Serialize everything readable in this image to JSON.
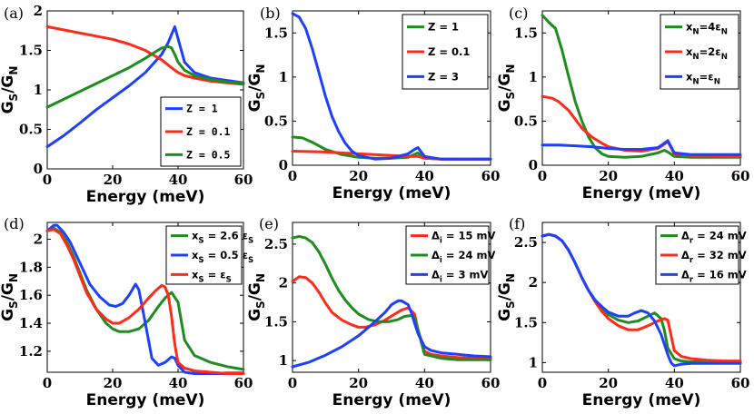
{
  "chart_data": [
    {
      "type": "line",
      "panel_label": "(a)",
      "xlabel": "Energy (meV)",
      "ylabel": "G_S/G_N",
      "xlim": [
        0,
        60
      ],
      "ylim": [
        0,
        2
      ],
      "xticks": [
        "0",
        "20",
        "40",
        "60"
      ],
      "yticks": [
        "0",
        "0.5",
        "1",
        "1.5",
        "2"
      ],
      "legend_location": "bottom-right",
      "legend_style": "mono",
      "series": [
        {
          "name": "Z = 1",
          "color": "#1f3fff",
          "x": [
            0,
            5,
            10,
            15,
            20,
            25,
            30,
            35,
            37,
            38,
            39,
            40,
            42,
            45,
            50,
            55,
            60
          ],
          "y": [
            0.28,
            0.42,
            0.58,
            0.75,
            0.9,
            1.05,
            1.22,
            1.45,
            1.6,
            1.7,
            1.8,
            1.65,
            1.35,
            1.22,
            1.15,
            1.12,
            1.09
          ]
        },
        {
          "name": "Z = 0.1",
          "color": "#ff2a1a",
          "x": [
            0,
            5,
            10,
            15,
            20,
            25,
            30,
            35,
            38,
            40,
            42,
            45,
            50,
            55,
            60
          ],
          "y": [
            1.8,
            1.76,
            1.72,
            1.68,
            1.64,
            1.58,
            1.5,
            1.38,
            1.28,
            1.22,
            1.18,
            1.15,
            1.11,
            1.09,
            1.07
          ]
        },
        {
          "name": "Z = 0.5",
          "color": "#1e8c1e",
          "x": [
            0,
            5,
            10,
            15,
            20,
            25,
            30,
            33,
            35,
            37,
            38,
            39,
            40,
            42,
            45,
            50,
            55,
            60
          ],
          "y": [
            0.78,
            0.88,
            0.98,
            1.08,
            1.18,
            1.28,
            1.4,
            1.48,
            1.53,
            1.55,
            1.53,
            1.45,
            1.35,
            1.25,
            1.18,
            1.13,
            1.1,
            1.08
          ]
        }
      ]
    },
    {
      "type": "line",
      "panel_label": "(b)",
      "xlabel": "Energy (meV)",
      "ylabel": "G_S/G_N",
      "xlim": [
        0,
        60
      ],
      "ylim": [
        0,
        1.75
      ],
      "xticks": [
        "0",
        "20",
        "40",
        "60"
      ],
      "yticks": [
        "0",
        "0.5",
        "1",
        "1.5"
      ],
      "legend_location": "top-right",
      "legend_style": "sans",
      "series": [
        {
          "name": "Z = 1",
          "color": "#1e8c1e",
          "x": [
            0,
            3,
            6,
            10,
            15,
            20,
            25,
            30,
            35,
            38,
            40,
            45,
            50,
            55,
            60
          ],
          "y": [
            0.32,
            0.31,
            0.26,
            0.18,
            0.12,
            0.09,
            0.08,
            0.08,
            0.09,
            0.14,
            0.08,
            0.07,
            0.07,
            0.07,
            0.07
          ]
        },
        {
          "name": "Z = 0.1",
          "color": "#ff2a1a",
          "x": [
            0,
            10,
            20,
            30,
            35,
            38,
            40,
            45,
            50,
            60
          ],
          "y": [
            0.16,
            0.15,
            0.13,
            0.11,
            0.1,
            0.1,
            0.08,
            0.07,
            0.07,
            0.07
          ]
        },
        {
          "name": "Z = 3",
          "color": "#1f3fff",
          "x": [
            0,
            2,
            4,
            6,
            8,
            10,
            12,
            14,
            16,
            18,
            20,
            25,
            30,
            35,
            37,
            38,
            39,
            40,
            45,
            50,
            55,
            60
          ],
          "y": [
            1.72,
            1.68,
            1.55,
            1.32,
            1.05,
            0.78,
            0.55,
            0.38,
            0.25,
            0.16,
            0.11,
            0.07,
            0.08,
            0.13,
            0.18,
            0.2,
            0.15,
            0.1,
            0.07,
            0.07,
            0.07,
            0.07
          ]
        }
      ]
    },
    {
      "type": "line",
      "panel_label": "(c)",
      "xlabel": "Energy (meV)",
      "ylabel": "G_S/G_N",
      "xlim": [
        0,
        60
      ],
      "ylim": [
        0,
        1.75
      ],
      "xticks": [
        "0",
        "20",
        "40",
        "60"
      ],
      "yticks": [
        "0",
        "0.5",
        "1",
        "1.5"
      ],
      "legend_location": "top-right",
      "legend_style": "sans",
      "series": [
        {
          "name": "x_N=4ε_N",
          "color": "#1e8c1e",
          "x": [
            0,
            2,
            4,
            6,
            8,
            10,
            12,
            14,
            16,
            18,
            20,
            25,
            30,
            35,
            37,
            38,
            40,
            45,
            50,
            55,
            60
          ],
          "y": [
            1.7,
            1.62,
            1.55,
            1.3,
            1.0,
            0.72,
            0.5,
            0.32,
            0.2,
            0.13,
            0.1,
            0.09,
            0.1,
            0.14,
            0.17,
            0.15,
            0.1,
            0.09,
            0.09,
            0.09,
            0.09
          ]
        },
        {
          "name": "x_N=2ε_N",
          "color": "#ff2a1a",
          "x": [
            0,
            3,
            5,
            8,
            10,
            12,
            15,
            18,
            20,
            25,
            30,
            35,
            37,
            38,
            40,
            45,
            50,
            55,
            60
          ],
          "y": [
            0.78,
            0.76,
            0.72,
            0.62,
            0.52,
            0.42,
            0.32,
            0.25,
            0.21,
            0.17,
            0.16,
            0.19,
            0.24,
            0.27,
            0.13,
            0.11,
            0.11,
            0.1,
            0.1
          ]
        },
        {
          "name": "x_N=ε_N",
          "color": "#1f3fff",
          "x": [
            0,
            5,
            10,
            15,
            20,
            25,
            30,
            35,
            37,
            38,
            40,
            45,
            50,
            55,
            60
          ],
          "y": [
            0.23,
            0.23,
            0.22,
            0.21,
            0.19,
            0.18,
            0.18,
            0.2,
            0.25,
            0.28,
            0.14,
            0.12,
            0.12,
            0.12,
            0.12
          ]
        }
      ]
    },
    {
      "type": "line",
      "panel_label": "(d)",
      "xlabel": "Energy (meV)",
      "ylabel": "G_S/G_N",
      "xlim": [
        0,
        60
      ],
      "ylim": [
        1.05,
        2.12
      ],
      "xticks": [
        "0",
        "20",
        "40",
        "60"
      ],
      "yticks": [
        "1.2",
        "1.4",
        "1.6",
        "1.8",
        "2"
      ],
      "legend_location": "top-right",
      "legend_style": "sans",
      "series": [
        {
          "name": "x_S = 2.6 ε_S",
          "color": "#1e8c1e",
          "x": [
            0,
            2,
            4,
            6,
            8,
            10,
            12,
            15,
            18,
            20,
            22,
            25,
            28,
            31,
            34,
            36,
            38,
            40,
            42,
            45,
            50,
            55,
            60
          ],
          "y": [
            2.06,
            2.08,
            2.05,
            1.98,
            1.88,
            1.76,
            1.64,
            1.5,
            1.4,
            1.36,
            1.34,
            1.34,
            1.36,
            1.42,
            1.52,
            1.58,
            1.62,
            1.55,
            1.28,
            1.17,
            1.12,
            1.09,
            1.07
          ]
        },
        {
          "name": "x_S = 0.5 ε_S",
          "color": "#1f3fff",
          "x": [
            0,
            2,
            3,
            5,
            7,
            9,
            11,
            13,
            16,
            19,
            21,
            23,
            25,
            27,
            28,
            30,
            32,
            34,
            36,
            38,
            39,
            40,
            42,
            45,
            50,
            55,
            60
          ],
          "y": [
            2.06,
            2.1,
            2.1,
            2.05,
            1.98,
            1.88,
            1.78,
            1.68,
            1.59,
            1.53,
            1.52,
            1.54,
            1.6,
            1.68,
            1.64,
            1.4,
            1.15,
            1.1,
            1.12,
            1.16,
            1.15,
            1.1,
            1.05,
            1.04,
            1.04,
            1.04,
            1.04
          ]
        },
        {
          "name": "x_S = ε_S",
          "color": "#ff2a1a",
          "x": [
            0,
            2,
            4,
            6,
            8,
            10,
            12,
            15,
            18,
            20,
            22,
            25,
            28,
            31,
            33,
            35,
            36,
            37,
            38,
            39,
            40,
            42,
            45,
            50,
            55,
            60
          ],
          "y": [
            2.06,
            2.07,
            2.04,
            1.96,
            1.86,
            1.74,
            1.62,
            1.5,
            1.43,
            1.4,
            1.4,
            1.44,
            1.5,
            1.58,
            1.63,
            1.67,
            1.66,
            1.6,
            1.45,
            1.25,
            1.12,
            1.08,
            1.06,
            1.05,
            1.04,
            1.04
          ]
        }
      ]
    },
    {
      "type": "line",
      "panel_label": "(e)",
      "xlabel": "Energy (meV)",
      "ylabel": "G_S/G_N",
      "xlim": [
        0,
        60
      ],
      "ylim": [
        0.85,
        2.78
      ],
      "xticks": [
        "0",
        "20",
        "40",
        "60"
      ],
      "yticks": [
        "1",
        "1.5",
        "2",
        "2.5"
      ],
      "legend_location": "top-right",
      "legend_style": "sans",
      "series": [
        {
          "name": "Δ_i = 15 mV",
          "color": "#ff2a1a",
          "x": [
            0,
            2,
            4,
            6,
            8,
            10,
            12,
            15,
            18,
            20,
            22,
            25,
            28,
            31,
            33,
            35,
            37,
            38,
            40,
            42,
            45,
            50,
            55,
            60
          ],
          "y": [
            2.02,
            2.08,
            2.07,
            2.0,
            1.88,
            1.74,
            1.62,
            1.52,
            1.46,
            1.43,
            1.43,
            1.46,
            1.52,
            1.6,
            1.65,
            1.68,
            1.6,
            1.4,
            1.12,
            1.08,
            1.06,
            1.04,
            1.03,
            1.03
          ]
        },
        {
          "name": "Δ_i = 24 mV",
          "color": "#1e8c1e",
          "x": [
            0,
            2,
            4,
            6,
            8,
            10,
            12,
            14,
            16,
            18,
            20,
            23,
            26,
            29,
            32,
            34,
            36,
            37,
            38,
            40,
            45,
            50,
            55,
            60
          ],
          "y": [
            2.58,
            2.6,
            2.58,
            2.52,
            2.4,
            2.24,
            2.06,
            1.9,
            1.78,
            1.68,
            1.6,
            1.53,
            1.5,
            1.5,
            1.53,
            1.57,
            1.58,
            1.55,
            1.4,
            1.08,
            1.03,
            1.01,
            1.01,
            1.01
          ]
        },
        {
          "name": "Δ_i = 3 mV",
          "color": "#1f3fff",
          "x": [
            0,
            5,
            10,
            15,
            20,
            25,
            28,
            30,
            32,
            33,
            35,
            36,
            37,
            38,
            40,
            42,
            45,
            50,
            55,
            60
          ],
          "y": [
            0.92,
            0.98,
            1.07,
            1.18,
            1.32,
            1.5,
            1.62,
            1.72,
            1.77,
            1.77,
            1.72,
            1.62,
            1.48,
            1.35,
            1.18,
            1.13,
            1.1,
            1.08,
            1.06,
            1.05
          ]
        }
      ]
    },
    {
      "type": "line",
      "panel_label": "(f)",
      "xlabel": "Energy (meV)",
      "ylabel": "G_S/G_N",
      "xlim": [
        0,
        60
      ],
      "ylim": [
        0.88,
        2.75
      ],
      "xticks": [
        "0",
        "20",
        "40",
        "60"
      ],
      "yticks": [
        "1",
        "1.5",
        "2",
        "2.5"
      ],
      "legend_location": "top-right",
      "legend_style": "sans",
      "series": [
        {
          "name": "Δ_r = 24 mV",
          "color": "#1e8c1e",
          "x": [
            0,
            2,
            4,
            6,
            8,
            10,
            12,
            14,
            16,
            18,
            20,
            23,
            26,
            29,
            32,
            34,
            36,
            37,
            38,
            40,
            42,
            45,
            50,
            55,
            60
          ],
          "y": [
            2.58,
            2.6,
            2.58,
            2.52,
            2.4,
            2.24,
            2.06,
            1.9,
            1.78,
            1.68,
            1.6,
            1.53,
            1.5,
            1.52,
            1.58,
            1.62,
            1.55,
            1.4,
            1.18,
            1.05,
            1.02,
            1.01,
            1.01,
            1.01,
            1.01
          ]
        },
        {
          "name": "Δ_r = 32 mV",
          "color": "#ff2a1a",
          "x": [
            0,
            2,
            4,
            6,
            8,
            10,
            12,
            14,
            16,
            18,
            20,
            23,
            26,
            29,
            32,
            35,
            37,
            38,
            40,
            42,
            45,
            50,
            55,
            60
          ],
          "y": [
            2.58,
            2.6,
            2.58,
            2.52,
            2.4,
            2.24,
            2.06,
            1.9,
            1.76,
            1.64,
            1.55,
            1.46,
            1.41,
            1.41,
            1.46,
            1.52,
            1.55,
            1.53,
            1.15,
            1.08,
            1.05,
            1.03,
            1.02,
            1.02
          ]
        },
        {
          "name": "Δ_r = 16 mV",
          "color": "#1f3fff",
          "x": [
            0,
            2,
            4,
            6,
            8,
            10,
            12,
            14,
            16,
            18,
            20,
            23,
            26,
            28,
            30,
            32,
            34,
            36,
            38,
            39,
            40,
            42,
            45,
            50,
            55,
            60
          ],
          "y": [
            2.58,
            2.6,
            2.58,
            2.52,
            2.4,
            2.24,
            2.06,
            1.9,
            1.78,
            1.7,
            1.63,
            1.58,
            1.58,
            1.62,
            1.65,
            1.62,
            1.52,
            1.35,
            1.1,
            1.0,
            0.96,
            0.98,
            0.99,
            0.99,
            0.99,
            0.99
          ]
        }
      ]
    }
  ]
}
